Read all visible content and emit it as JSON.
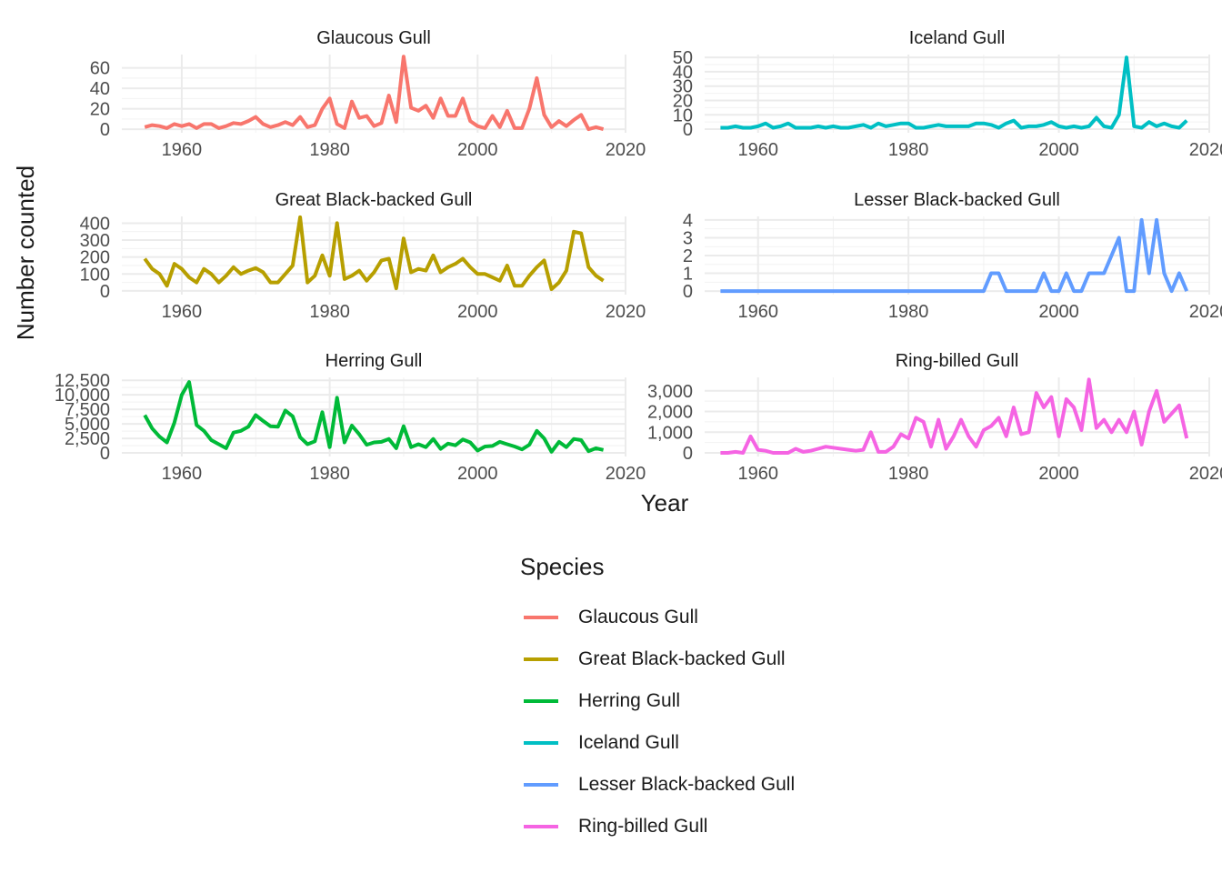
{
  "chart_data": {
    "type": "line",
    "x_label": "Year",
    "y_label": "Number counted",
    "legend_title": "Species",
    "legend_position": "bottom",
    "grid": true,
    "facets": [
      {
        "name": "Glaucous Gull",
        "color": "#F8766D",
        "xlim": [
          1951.9,
          2020
        ],
        "x_ticks": [
          1960,
          1980,
          2000,
          2020
        ],
        "x_tick_labels": [
          "1960",
          "1980",
          "2000",
          "2020"
        ],
        "ylim": [
          -3.5,
          73
        ],
        "y_ticks": [
          0,
          20,
          40,
          60
        ],
        "y_tick_labels": [
          "0",
          "20",
          "40",
          "60"
        ],
        "x": [
          1955,
          1956,
          1957,
          1958,
          1959,
          1960,
          1961,
          1962,
          1963,
          1964,
          1965,
          1966,
          1967,
          1968,
          1969,
          1970,
          1971,
          1972,
          1973,
          1974,
          1975,
          1976,
          1977,
          1978,
          1979,
          1980,
          1981,
          1982,
          1983,
          1984,
          1985,
          1986,
          1987,
          1988,
          1989,
          1990,
          1991,
          1992,
          1993,
          1994,
          1995,
          1996,
          1997,
          1998,
          1999,
          2000,
          2001,
          2002,
          2003,
          2004,
          2005,
          2006,
          2007,
          2008,
          2009,
          2010,
          2011,
          2012,
          2013,
          2014,
          2015,
          2016,
          2017
        ],
        "y": [
          2,
          4,
          3,
          1,
          5,
          3,
          5,
          1,
          5,
          5,
          1,
          3,
          6,
          5,
          8,
          12,
          5,
          2,
          4,
          7,
          4,
          12,
          2,
          4,
          20,
          30,
          5,
          1,
          27,
          11,
          13,
          3,
          6,
          33,
          7,
          71,
          21,
          18,
          23,
          11,
          30,
          13,
          13,
          30,
          8,
          3,
          1,
          13,
          2,
          18,
          1,
          1,
          20,
          50,
          14,
          2,
          8,
          3,
          9,
          14,
          0,
          2,
          0
        ]
      },
      {
        "name": "Iceland Gull",
        "color": "#00BFC4",
        "xlim": [
          1952.9,
          2020
        ],
        "x_ticks": [
          1960,
          1980,
          2000,
          2020
        ],
        "x_tick_labels": [
          "1960",
          "1980",
          "2000",
          "2020"
        ],
        "ylim": [
          -2.5,
          52
        ],
        "y_ticks": [
          0,
          10,
          20,
          30,
          40,
          50
        ],
        "y_tick_labels": [
          "0",
          "10",
          "20",
          "30",
          "40",
          "50"
        ],
        "x": [
          1955,
          1956,
          1957,
          1958,
          1959,
          1960,
          1961,
          1962,
          1963,
          1964,
          1965,
          1966,
          1967,
          1968,
          1969,
          1970,
          1971,
          1972,
          1973,
          1974,
          1975,
          1976,
          1977,
          1978,
          1979,
          1980,
          1981,
          1982,
          1983,
          1984,
          1985,
          1986,
          1987,
          1988,
          1989,
          1990,
          1991,
          1992,
          1993,
          1994,
          1995,
          1996,
          1997,
          1998,
          1999,
          2000,
          2001,
          2002,
          2003,
          2004,
          2005,
          2006,
          2007,
          2008,
          2009,
          2010,
          2011,
          2012,
          2013,
          2014,
          2015,
          2016,
          2017
        ],
        "y": [
          1,
          1,
          2,
          1,
          1,
          2,
          4,
          1,
          2,
          4,
          1,
          1,
          1,
          2,
          1,
          2,
          1,
          1,
          2,
          3,
          1,
          4,
          2,
          3,
          4,
          4,
          1,
          1,
          2,
          3,
          2,
          2,
          2,
          2,
          4,
          4,
          3,
          1,
          4,
          6,
          1,
          2,
          2,
          3,
          5,
          2,
          1,
          2,
          1,
          2,
          8,
          2,
          1,
          10,
          50,
          2,
          1,
          5,
          2,
          4,
          2,
          1,
          6
        ]
      },
      {
        "name": "Great Black-backed Gull",
        "color": "#B79F00",
        "xlim": [
          1951.9,
          2020
        ],
        "x_ticks": [
          1960,
          1980,
          2000,
          2020
        ],
        "x_tick_labels": [
          "1960",
          "1980",
          "2000",
          "2020"
        ],
        "ylim": [
          -22,
          440
        ],
        "y_ticks": [
          0,
          100,
          200,
          300,
          400
        ],
        "y_tick_labels": [
          "0",
          "100",
          "200",
          "300",
          "400"
        ],
        "x": [
          1955,
          1956,
          1957,
          1958,
          1959,
          1960,
          1961,
          1962,
          1963,
          1964,
          1965,
          1966,
          1967,
          1968,
          1969,
          1970,
          1971,
          1972,
          1973,
          1974,
          1975,
          1976,
          1977,
          1978,
          1979,
          1980,
          1981,
          1982,
          1983,
          1984,
          1985,
          1986,
          1987,
          1988,
          1989,
          1990,
          1991,
          1992,
          1993,
          1994,
          1995,
          1996,
          1997,
          1998,
          1999,
          2000,
          2001,
          2002,
          2003,
          2004,
          2005,
          2006,
          2007,
          2008,
          2009,
          2010,
          2011,
          2012,
          2013,
          2014,
          2015,
          2016,
          2017
        ],
        "y": [
          190,
          130,
          100,
          30,
          160,
          130,
          80,
          50,
          130,
          100,
          50,
          90,
          140,
          100,
          120,
          135,
          110,
          50,
          50,
          100,
          150,
          435,
          50,
          90,
          210,
          90,
          400,
          70,
          90,
          120,
          60,
          110,
          180,
          190,
          15,
          310,
          110,
          130,
          120,
          210,
          110,
          140,
          160,
          190,
          140,
          100,
          100,
          80,
          60,
          150,
          30,
          30,
          90,
          140,
          180,
          10,
          50,
          120,
          350,
          340,
          140,
          90,
          60
        ]
      },
      {
        "name": "Lesser Black-backed Gull",
        "color": "#619CFF",
        "xlim": [
          1952.9,
          2020
        ],
        "x_ticks": [
          1960,
          1980,
          2000,
          2020
        ],
        "x_tick_labels": [
          "1960",
          "1980",
          "2000",
          "2020"
        ],
        "ylim": [
          -0.2,
          4.2
        ],
        "y_ticks": [
          0,
          1,
          2,
          3,
          4
        ],
        "y_tick_labels": [
          "0",
          "1",
          "2",
          "3",
          "4"
        ],
        "x": [
          1955,
          1956,
          1957,
          1958,
          1959,
          1960,
          1961,
          1962,
          1963,
          1964,
          1965,
          1966,
          1967,
          1968,
          1969,
          1970,
          1971,
          1972,
          1973,
          1974,
          1975,
          1976,
          1977,
          1978,
          1979,
          1980,
          1981,
          1982,
          1983,
          1984,
          1985,
          1986,
          1987,
          1988,
          1989,
          1990,
          1991,
          1992,
          1993,
          1994,
          1995,
          1996,
          1997,
          1998,
          1999,
          2000,
          2001,
          2002,
          2003,
          2004,
          2005,
          2006,
          2007,
          2008,
          2009,
          2010,
          2011,
          2012,
          2013,
          2014,
          2015,
          2016,
          2017
        ],
        "y": [
          0,
          0,
          0,
          0,
          0,
          0,
          0,
          0,
          0,
          0,
          0,
          0,
          0,
          0,
          0,
          0,
          0,
          0,
          0,
          0,
          0,
          0,
          0,
          0,
          0,
          0,
          0,
          0,
          0,
          0,
          0,
          0,
          0,
          0,
          0,
          0,
          1,
          1,
          0,
          0,
          0,
          0,
          0,
          1,
          0,
          0,
          1,
          0,
          0,
          1,
          1,
          1,
          2,
          3,
          0,
          0,
          4,
          1,
          4,
          1,
          0,
          1,
          0
        ]
      },
      {
        "name": "Herring Gull",
        "color": "#00BA38",
        "xlim": [
          1951.9,
          2020
        ],
        "x_ticks": [
          1960,
          1980,
          2000,
          2020
        ],
        "x_tick_labels": [
          "1960",
          "1980",
          "2000",
          "2020"
        ],
        "ylim": [
          -620,
          13000
        ],
        "y_ticks": [
          0,
          2500,
          5000,
          7500,
          10000,
          12500
        ],
        "y_tick_labels": [
          "0",
          "2,500",
          "5,000",
          "7,500",
          "10,000",
          "12,500"
        ],
        "x": [
          1955,
          1956,
          1957,
          1958,
          1959,
          1960,
          1961,
          1962,
          1963,
          1964,
          1965,
          1966,
          1967,
          1968,
          1969,
          1970,
          1971,
          1972,
          1973,
          1974,
          1975,
          1976,
          1977,
          1978,
          1979,
          1980,
          1981,
          1982,
          1983,
          1984,
          1985,
          1986,
          1987,
          1988,
          1989,
          1990,
          1991,
          1992,
          1993,
          1994,
          1995,
          1996,
          1997,
          1998,
          1999,
          2000,
          2001,
          2002,
          2003,
          2004,
          2005,
          2006,
          2007,
          2008,
          2009,
          2010,
          2011,
          2012,
          2013,
          2014,
          2015,
          2016,
          2017
        ],
        "y": [
          6500,
          4200,
          2800,
          1800,
          5200,
          10000,
          12200,
          4800,
          3800,
          2200,
          1500,
          800,
          3500,
          3800,
          4500,
          6500,
          5500,
          4600,
          4500,
          7300,
          6300,
          2700,
          1500,
          2000,
          7000,
          1000,
          9500,
          1800,
          4700,
          3200,
          1400,
          1800,
          1900,
          2400,
          800,
          4600,
          1000,
          1500,
          1000,
          2400,
          700,
          1600,
          1300,
          2300,
          1800,
          400,
          1100,
          1200,
          1900,
          1500,
          1100,
          600,
          1400,
          3800,
          2500,
          200,
          1900,
          1000,
          2400,
          2200,
          300,
          800,
          500
        ]
      },
      {
        "name": "Ring-billed Gull",
        "color": "#F564E3",
        "xlim": [
          1952.9,
          2020
        ],
        "x_ticks": [
          1960,
          1980,
          2000,
          2020
        ],
        "x_tick_labels": [
          "1960",
          "1980",
          "2000",
          "2020"
        ],
        "ylim": [
          -175,
          3650
        ],
        "y_ticks": [
          0,
          1000,
          2000,
          3000
        ],
        "y_tick_labels": [
          "0",
          "1,000",
          "2,000",
          "3,000"
        ],
        "x": [
          1955,
          1956,
          1957,
          1958,
          1959,
          1960,
          1961,
          1962,
          1963,
          1964,
          1965,
          1966,
          1967,
          1968,
          1969,
          1970,
          1971,
          1972,
          1973,
          1974,
          1975,
          1976,
          1977,
          1978,
          1979,
          1980,
          1981,
          1982,
          1983,
          1984,
          1985,
          1986,
          1987,
          1988,
          1989,
          1990,
          1991,
          1992,
          1993,
          1994,
          1995,
          1996,
          1997,
          1998,
          1999,
          2000,
          2001,
          2002,
          2003,
          2004,
          2005,
          2006,
          2007,
          2008,
          2009,
          2010,
          2011,
          2012,
          2013,
          2014,
          2015,
          2016,
          2017
        ],
        "y": [
          0,
          0,
          50,
          0,
          800,
          150,
          100,
          0,
          0,
          0,
          200,
          50,
          100,
          200,
          300,
          250,
          200,
          150,
          100,
          150,
          1000,
          50,
          50,
          300,
          900,
          700,
          1700,
          1500,
          300,
          1600,
          200,
          800,
          1600,
          800,
          300,
          1100,
          1300,
          1700,
          800,
          2200,
          900,
          1000,
          2900,
          2200,
          2700,
          800,
          2600,
          2200,
          1100,
          3550,
          1200,
          1600,
          1000,
          1600,
          1000,
          2000,
          400,
          2000,
          3000,
          1500,
          1900,
          2300,
          700
        ]
      }
    ]
  }
}
